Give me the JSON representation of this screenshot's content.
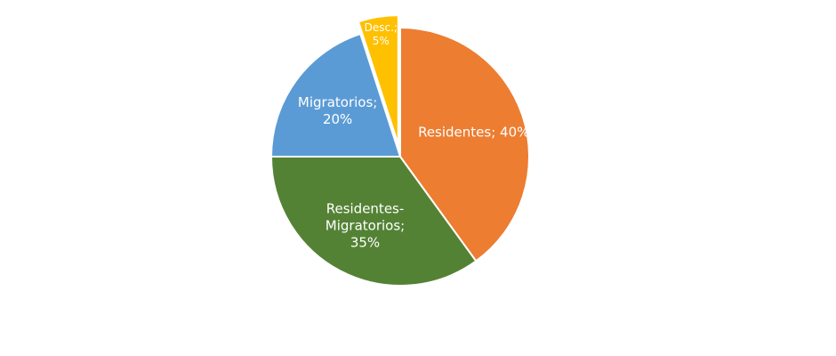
{
  "chart_data": {
    "type": "pie",
    "values": [
      40,
      35,
      20,
      5
    ],
    "value_labels": [
      "Residentes; 40%",
      "Residentes-\nMigratorios;\n35%",
      "Migratorios;\n20%",
      "Desc.;\n5%"
    ],
    "colors": [
      "#ED7D31",
      "#548235",
      "#5B9BD5",
      "#FFC000"
    ],
    "exploded": [
      false,
      false,
      false,
      true
    ]
  }
}
